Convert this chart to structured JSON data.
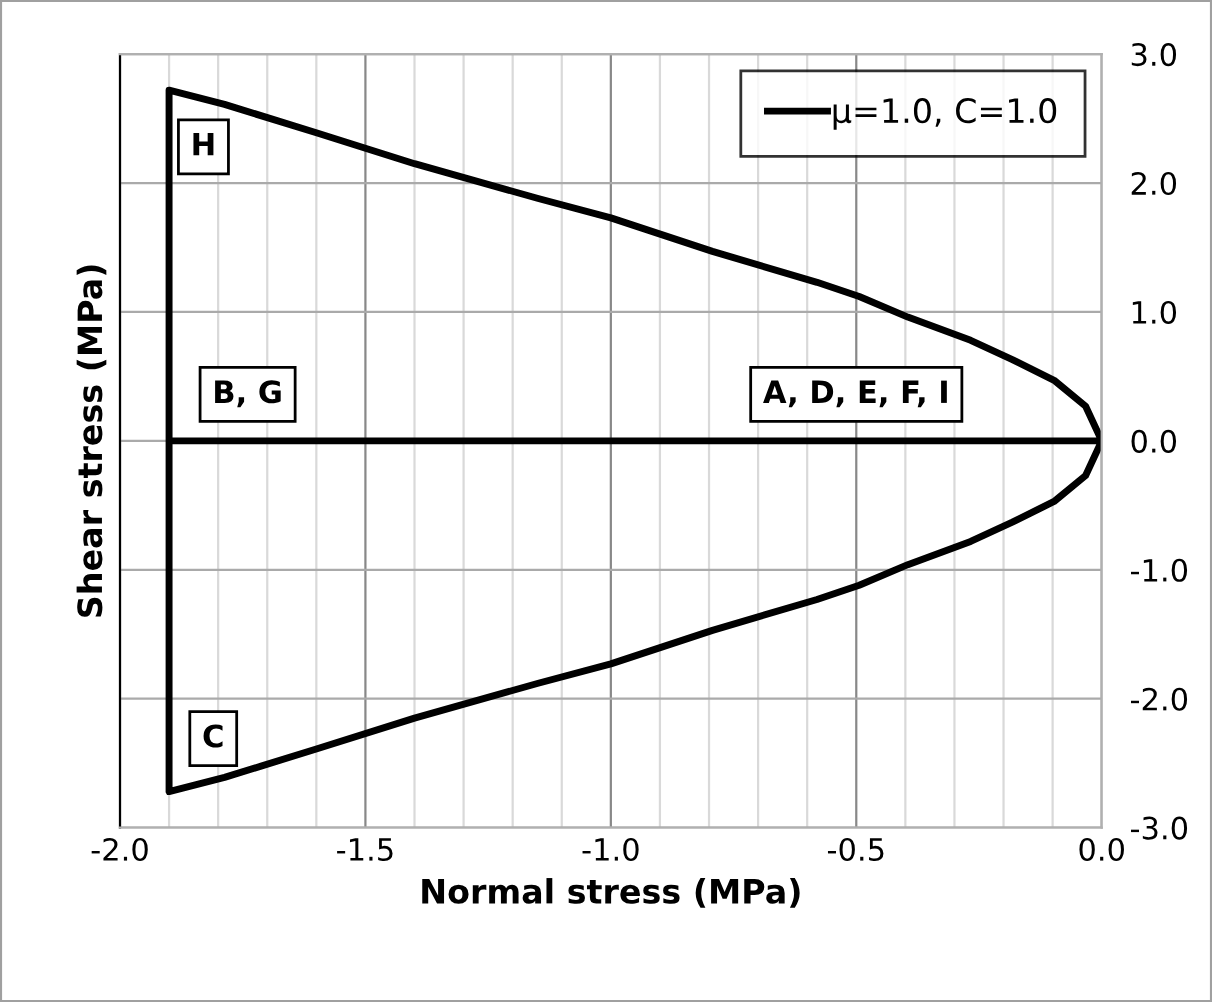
{
  "chart_data": {
    "type": "line",
    "xlabel": "Normal stress (MPa)",
    "ylabel": "Shear stress (MPa)",
    "series": [
      {
        "name": "μ=1.0, C=1.0",
        "color": "#000000",
        "x": [
          0,
          -0.033,
          -0.097,
          -0.182,
          -0.267,
          -0.395,
          -0.494,
          -0.58,
          -0.793,
          -1.0,
          -1.148,
          -1.4,
          -1.6,
          -1.787,
          -1.9,
          -1.9,
          -1.787,
          -1.6,
          -1.4,
          -1.148,
          -1.0,
          -0.793,
          -0.58,
          -0.494,
          -0.395,
          -0.267,
          -0.182,
          -0.097,
          -0.033,
          0,
          -1.9
        ],
        "values": [
          0,
          -0.27,
          -0.47,
          -0.63,
          -0.78,
          -0.96,
          -1.12,
          -1.23,
          -1.47,
          -1.73,
          -1.88,
          -2.15,
          -2.39,
          -2.61,
          -2.72,
          2.72,
          2.61,
          2.39,
          2.15,
          1.88,
          1.73,
          1.47,
          1.23,
          1.12,
          0.96,
          0.78,
          0.63,
          0.47,
          0.27,
          0,
          0
        ]
      }
    ],
    "xlim": [
      -2.0,
      0.0
    ],
    "xticks": [
      {
        "value": -2.0,
        "label": "-2.0"
      },
      {
        "value": -1.9,
        "label": null
      },
      {
        "value": -1.8,
        "label": null
      },
      {
        "value": -1.7,
        "label": null
      },
      {
        "value": -1.6,
        "label": null
      },
      -1.5,
      {
        "value": -1.4,
        "label": null
      },
      {
        "value": -1.3,
        "label": null
      },
      {
        "value": -1.2,
        "label": null
      },
      {
        "value": -1.1,
        "label": null
      },
      {
        "value": -1.0,
        "label": "-1.0"
      },
      {
        "value": -0.9,
        "label": null
      },
      {
        "value": -0.8,
        "label": null
      },
      {
        "value": -0.7,
        "label": null
      },
      {
        "value": -0.6,
        "label": null
      },
      -0.5,
      {
        "value": -0.4,
        "label": null
      },
      {
        "value": -0.3,
        "label": null
      },
      {
        "value": -0.2,
        "label": null
      },
      {
        "value": -0.1,
        "label": null
      },
      {
        "value": 0.0,
        "label": "0.0"
      }
    ],
    "ylim": [
      -3.0,
      3.0
    ],
    "yticks": [
      {
        "value": -3.0,
        "label": "-3.0"
      },
      {
        "value": -2.0,
        "label": "-2.0"
      },
      {
        "value": -1.0,
        "label": "-1.0"
      },
      {
        "value": 0.0,
        "label": "0.0"
      },
      {
        "value": 1.0,
        "label": "1.0"
      },
      {
        "value": 2.0,
        "label": "2.0"
      },
      {
        "value": 3.0,
        "label": "3.0"
      }
    ],
    "grid": true,
    "legend": "top right",
    "marker": "none",
    "line_style": "solid",
    "annotations": [
      "H",
      "B, G",
      "C",
      "A, D, E, F, I"
    ]
  }
}
